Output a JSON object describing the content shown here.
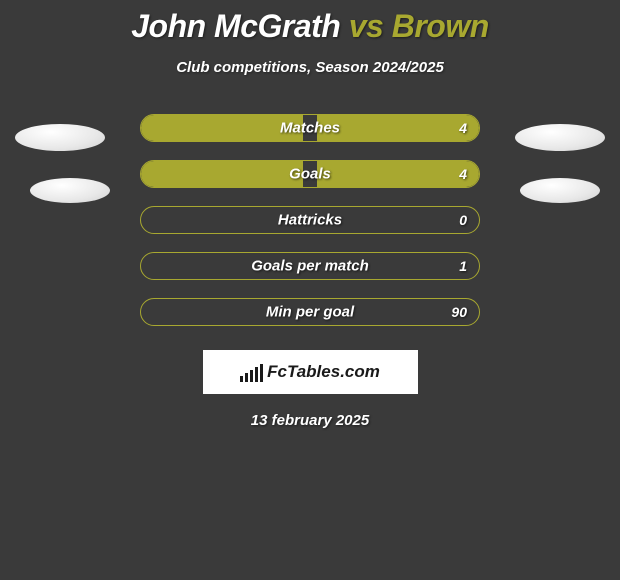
{
  "title": {
    "player1": "John McGrath",
    "vs": "vs",
    "player2": "Brown"
  },
  "subtitle": "Club competitions, Season 2024/2025",
  "colors": {
    "accent": "#a8a830",
    "background": "#3a3a3a",
    "text": "#ffffff"
  },
  "stats": [
    {
      "label": "Matches",
      "value_right": "4",
      "fill_left_pct": 48,
      "fill_right_pct": 48,
      "gap": true
    },
    {
      "label": "Goals",
      "value_right": "4",
      "fill_left_pct": 48,
      "fill_right_pct": 48,
      "gap": true
    },
    {
      "label": "Hattricks",
      "value_right": "0",
      "fill_left_pct": 0,
      "fill_right_pct": 0,
      "gap": false
    },
    {
      "label": "Goals per match",
      "value_right": "1",
      "fill_left_pct": 0,
      "fill_right_pct": 0,
      "gap": false
    },
    {
      "label": "Min per goal",
      "value_right": "90",
      "fill_left_pct": 0,
      "fill_right_pct": 0,
      "gap": false
    }
  ],
  "logo_text": "FcTables.com",
  "date": "13 february 2025",
  "logo_bars_heights": [
    6,
    9,
    12,
    15,
    18
  ]
}
